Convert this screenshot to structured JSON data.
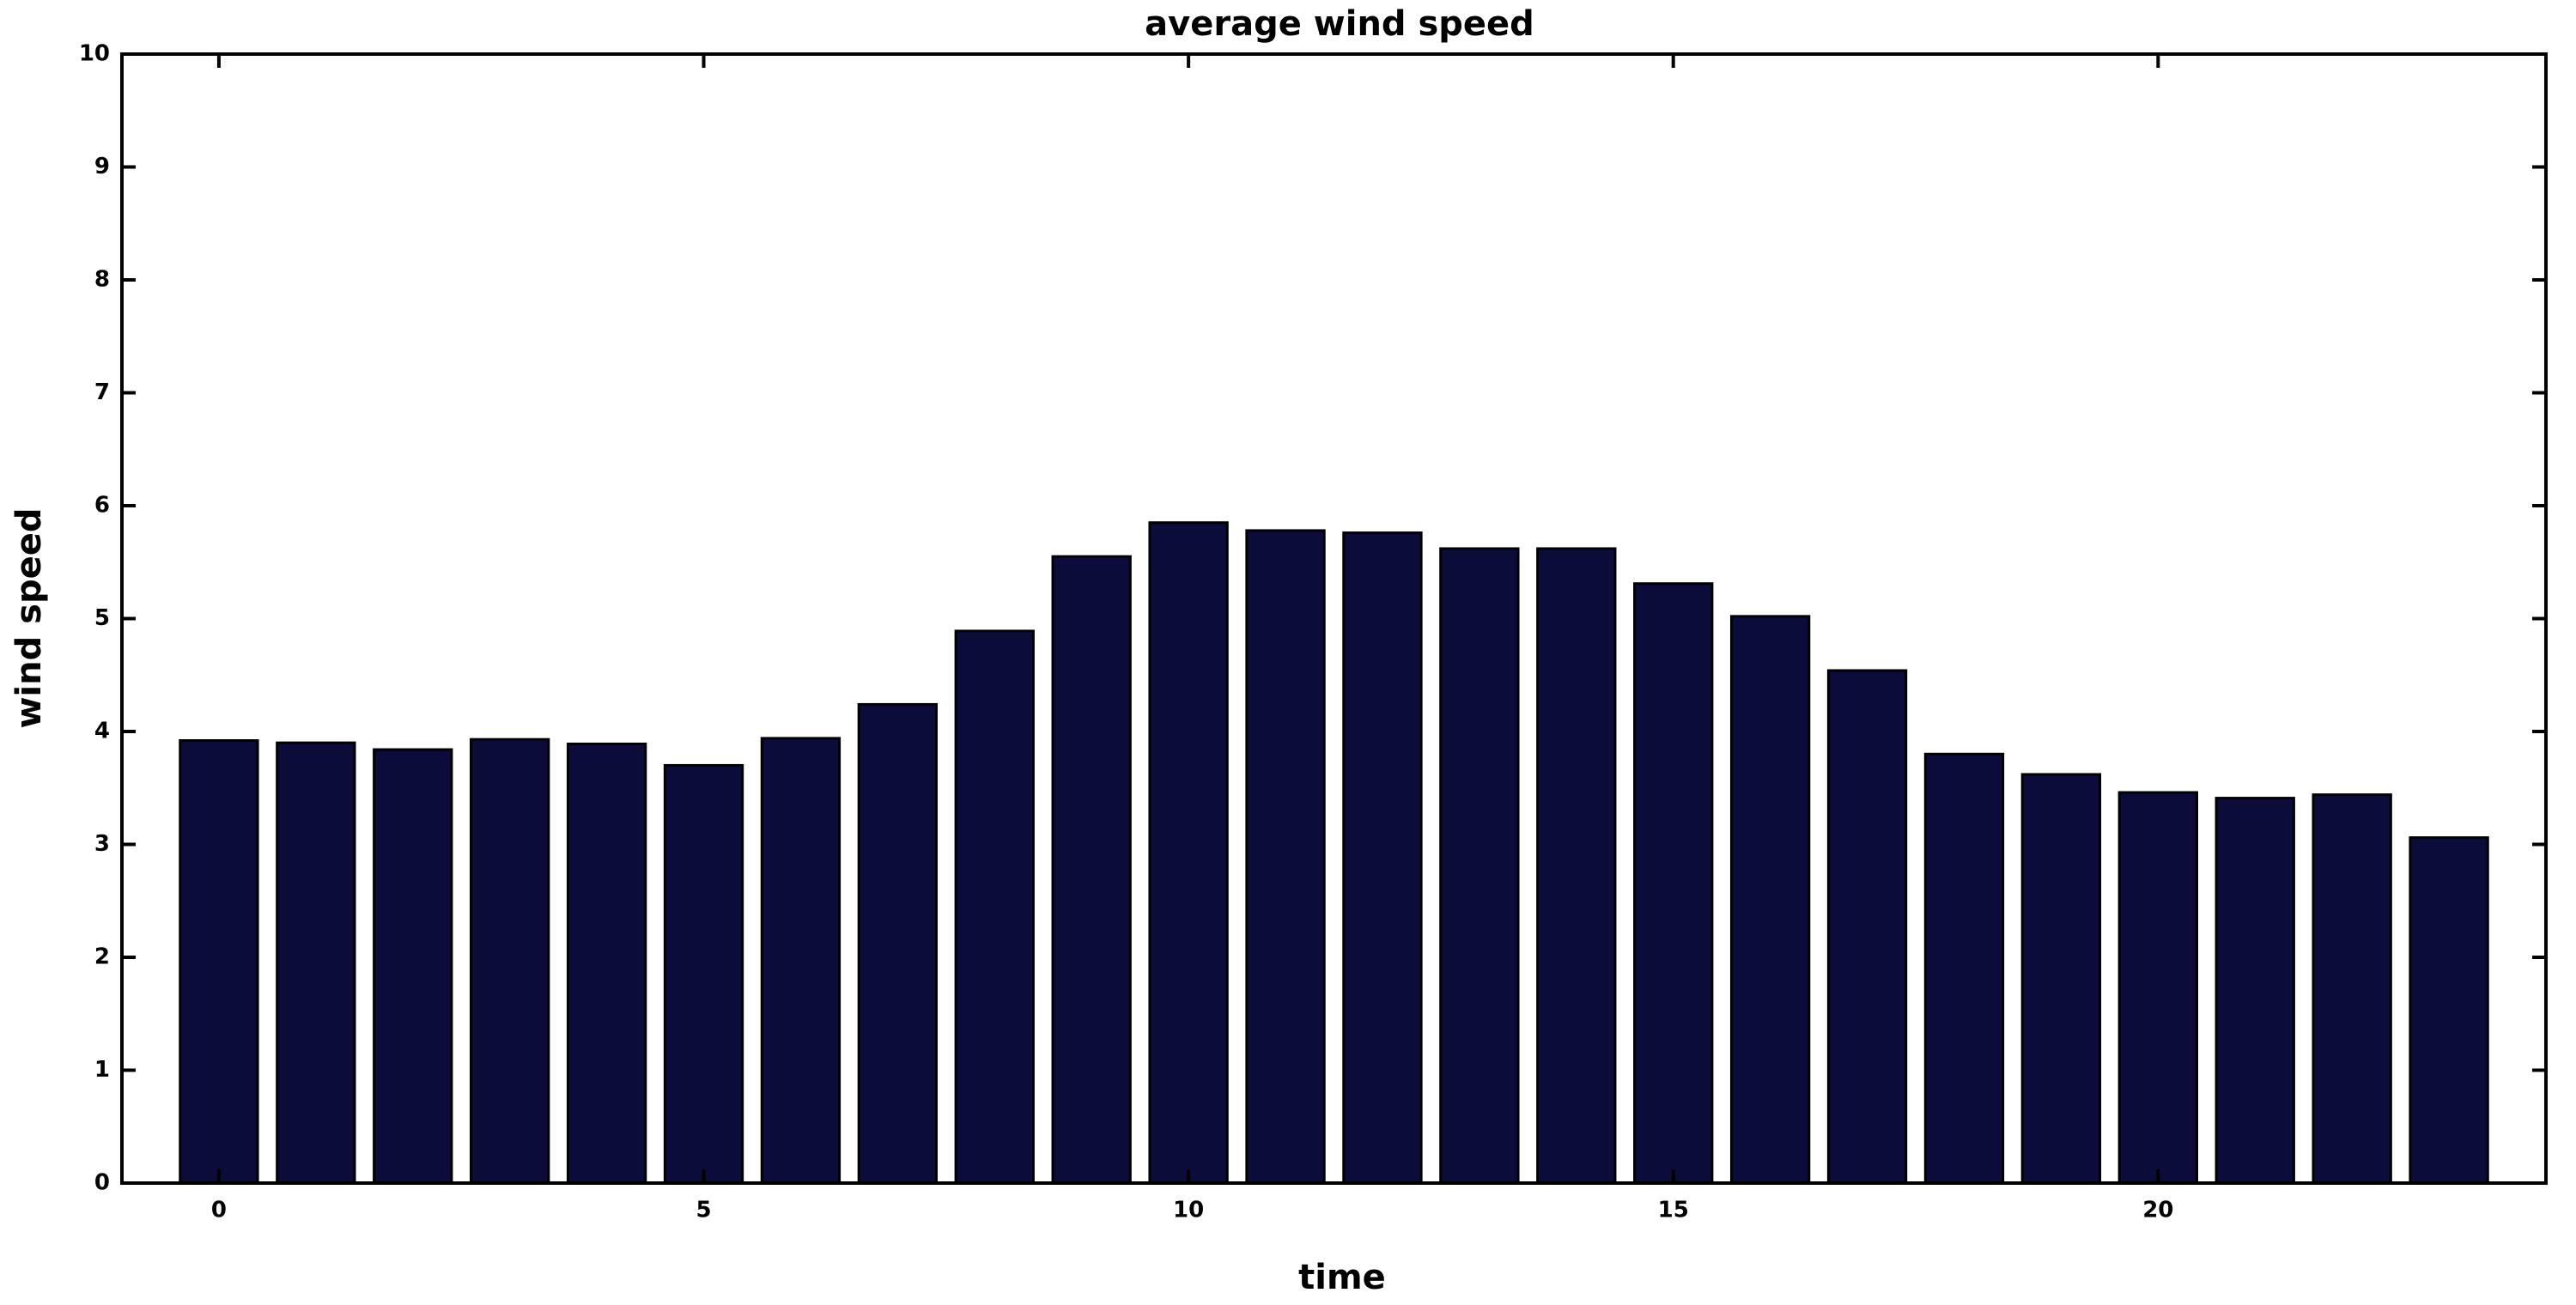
{
  "chart_data": {
    "type": "bar",
    "title": "average wind speed",
    "x_label": "time",
    "y_label": "wind speed",
    "x": [
      0,
      1,
      2,
      3,
      4,
      5,
      6,
      7,
      8,
      9,
      10,
      11,
      12,
      13,
      14,
      15,
      16,
      17,
      18,
      19,
      20,
      21,
      22,
      23
    ],
    "values": [
      3.92,
      3.9,
      3.84,
      3.93,
      3.89,
      3.7,
      3.94,
      4.24,
      4.89,
      5.55,
      5.85,
      5.78,
      5.76,
      5.62,
      5.62,
      5.31,
      5.02,
      4.54,
      3.8,
      3.62,
      3.46,
      3.41,
      3.44,
      3.06
    ],
    "color": "#0c0c3a",
    "xlim": [
      -1,
      24
    ],
    "xticks": [
      0,
      5,
      10,
      15,
      20
    ],
    "ylim": [
      0,
      10
    ],
    "yticks": [
      0,
      1,
      2,
      3,
      4,
      5,
      6,
      7,
      8,
      9,
      10
    ]
  }
}
